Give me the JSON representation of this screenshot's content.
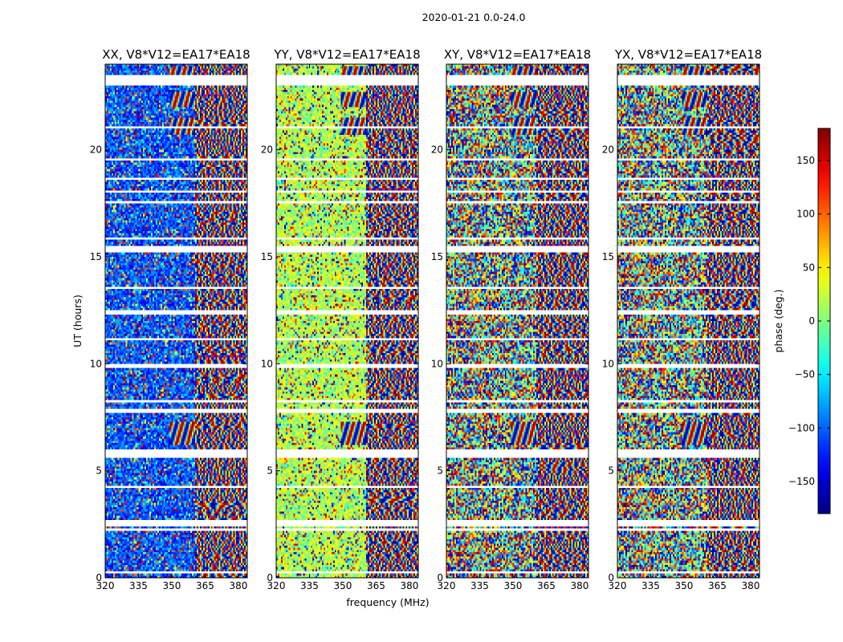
{
  "suptitle": "2020-01-21 0.0-24.0",
  "chart_data": {
    "type": "heatmap",
    "panels": [
      {
        "id": "xx",
        "title": "XX, V8*V12=EA17*EA18",
        "base": -105,
        "spread": 40
      },
      {
        "id": "yy",
        "title": "YY, V8*V12=EA17*EA18",
        "base": 20,
        "spread": 40
      },
      {
        "id": "xy",
        "title": "XY, V8*V12=EA17*EA18",
        "base": 0,
        "spread": 180
      },
      {
        "id": "yx",
        "title": "YX, V8*V12=EA17*EA18",
        "base": 0,
        "spread": 180
      }
    ],
    "xlabel": "frequency (MHz)",
    "ylabel": "UT (hours)",
    "xlim": [
      320,
      384
    ],
    "ylim": [
      0,
      24
    ],
    "xticks": [
      320,
      335,
      350,
      365,
      380
    ],
    "yticks": [
      0,
      5,
      10,
      15,
      20
    ],
    "colorbar": {
      "label": "phase (deg.)",
      "range": [
        -180,
        180
      ],
      "ticks": [
        -150,
        -100,
        -50,
        0,
        50,
        100,
        150
      ],
      "colormap": "jet"
    },
    "gap_hours": [
      [
        0.15,
        0.25
      ],
      [
        2.2,
        2.3
      ],
      [
        2.4,
        2.7
      ],
      [
        4.2,
        4.35
      ],
      [
        5.65,
        5.95
      ],
      [
        7.7,
        7.85
      ],
      [
        8.2,
        8.3
      ],
      [
        9.8,
        9.95
      ],
      [
        11.1,
        11.2
      ],
      [
        12.35,
        12.45
      ],
      [
        13.5,
        13.6
      ],
      [
        15.2,
        15.45
      ],
      [
        15.8,
        15.95
      ],
      [
        17.5,
        17.6
      ],
      [
        18.0,
        18.1
      ],
      [
        18.6,
        18.7
      ],
      [
        19.5,
        19.6
      ],
      [
        21.0,
        21.1
      ],
      [
        23.0,
        23.45
      ]
    ],
    "fringe_bands_hours": [
      [
        6.2,
        7.3
      ],
      [
        20.7,
        21.5
      ],
      [
        22.0,
        22.7
      ],
      [
        23.5,
        23.9
      ]
    ]
  }
}
